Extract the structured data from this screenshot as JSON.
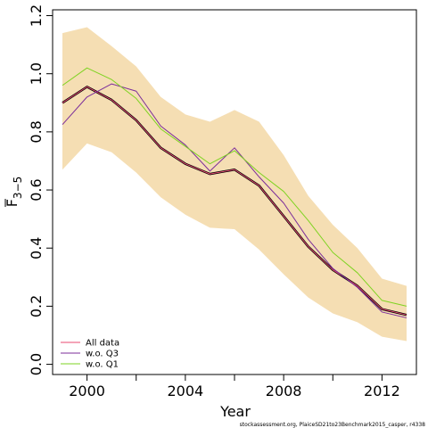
{
  "chart_data": {
    "type": "line",
    "xlabel": "Year",
    "ylabel_main": "F",
    "ylabel_sub": "3−5",
    "xlim": [
      1998.6,
      2013.4
    ],
    "ylim": [
      -0.035,
      1.22
    ],
    "x_ticks": [
      2000,
      2004,
      2008,
      2012
    ],
    "x_tick_labels": [
      "2000",
      "2004",
      "2008",
      "2012"
    ],
    "x_minor_ticks": [
      2002,
      2006,
      2010
    ],
    "y_ticks": [
      0.0,
      0.2,
      0.4,
      0.6,
      0.8,
      1.0,
      1.2
    ],
    "y_tick_labels": [
      "0.0",
      "0.2",
      "0.4",
      "0.6",
      "0.8",
      "1.0",
      "1.2"
    ],
    "x": [
      1999,
      2000,
      2001,
      2002,
      2003,
      2004,
      2005,
      2006,
      2007,
      2008,
      2009,
      2010,
      2011,
      2012,
      2013
    ],
    "band": {
      "color": "#f5deb3",
      "upper": [
        1.14,
        1.16,
        1.095,
        1.025,
        0.92,
        0.86,
        0.835,
        0.875,
        0.835,
        0.72,
        0.58,
        0.48,
        0.4,
        0.295,
        0.27
      ],
      "lower": [
        0.67,
        0.76,
        0.73,
        0.66,
        0.575,
        0.515,
        0.47,
        0.465,
        0.395,
        0.31,
        0.23,
        0.175,
        0.145,
        0.095,
        0.08
      ]
    },
    "series": [
      {
        "name": "All data",
        "color": "#000000",
        "width": 2.5,
        "in_legend": false,
        "values": [
          0.9,
          0.955,
          0.91,
          0.84,
          0.745,
          0.69,
          0.655,
          0.67,
          0.615,
          0.51,
          0.405,
          0.325,
          0.27,
          0.19,
          0.17
        ]
      },
      {
        "name": "All data",
        "color": "#e84a72",
        "width": 1,
        "in_legend": true,
        "values": [
          0.9,
          0.955,
          0.91,
          0.84,
          0.745,
          0.69,
          0.655,
          0.67,
          0.615,
          0.51,
          0.405,
          0.325,
          0.27,
          0.19,
          0.17
        ]
      },
      {
        "name": "w.o. Q3",
        "color": "#7b2d9a",
        "width": 1,
        "in_legend": true,
        "values": [
          0.825,
          0.92,
          0.965,
          0.94,
          0.82,
          0.755,
          0.665,
          0.745,
          0.645,
          0.555,
          0.43,
          0.33,
          0.265,
          0.18,
          0.16
        ]
      },
      {
        "name": "w.o. Q1",
        "color": "#7ed321",
        "width": 1,
        "in_legend": true,
        "values": [
          0.96,
          1.02,
          0.98,
          0.915,
          0.81,
          0.75,
          0.69,
          0.735,
          0.66,
          0.595,
          0.495,
          0.385,
          0.315,
          0.22,
          0.2
        ]
      }
    ]
  },
  "footnote": "stockassessment.org, PlaiceSD21to23Benchmark2015_casper, r4338"
}
